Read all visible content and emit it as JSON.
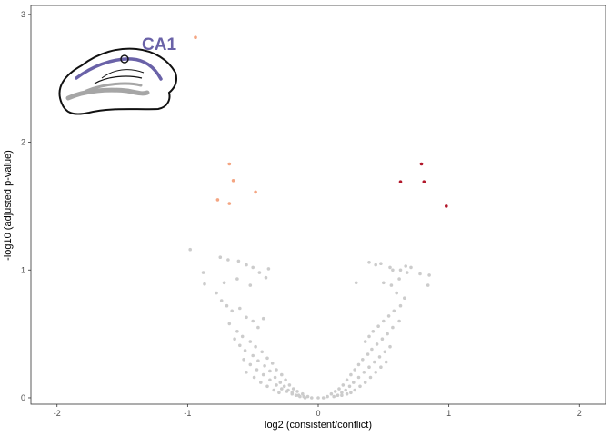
{
  "chart_data": {
    "type": "scatter",
    "title": "",
    "xlabel": "log2 (consistent/conflict)",
    "ylabel": "-log10 (adjusted p-value)",
    "xlim": [
      -2.2,
      2.2
    ],
    "ylim": [
      -0.05,
      3.07
    ],
    "x_ticks": [
      -2,
      -1,
      0,
      1,
      2
    ],
    "y_ticks": [
      0,
      1,
      2,
      3
    ],
    "grid": false,
    "legend": "none",
    "colors": {
      "background_points": "#cccccc",
      "up_points": "#b2182b",
      "down_points": "#f4a582",
      "inset_accent": "#6a62a8",
      "inset_outline": "#111111",
      "inset_layer": "#a6a6a6"
    },
    "inset": {
      "region_label": "CA1"
    },
    "series": [
      {
        "name": "",
        "role": "significant-up",
        "points": [
          [
            0.79,
            1.83
          ],
          [
            0.63,
            1.69
          ],
          [
            0.81,
            1.69
          ],
          [
            0.98,
            1.5
          ]
        ]
      },
      {
        "name": "",
        "role": "significant-down",
        "points": [
          [
            -0.94,
            2.82
          ],
          [
            -0.68,
            1.83
          ],
          [
            -0.65,
            1.7
          ],
          [
            -0.48,
            1.61
          ],
          [
            -0.77,
            1.55
          ],
          [
            -0.68,
            1.52
          ]
        ]
      },
      {
        "name": "",
        "role": "not-significant",
        "points": [
          [
            -0.98,
            1.16
          ],
          [
            -0.88,
            0.98
          ],
          [
            -0.87,
            0.89
          ],
          [
            -0.75,
            1.1
          ],
          [
            -0.69,
            1.08
          ],
          [
            -0.61,
            1.07
          ],
          [
            -0.55,
            1.04
          ],
          [
            -0.5,
            1.02
          ],
          [
            -0.45,
            0.98
          ],
          [
            -0.38,
            1.01
          ],
          [
            -0.4,
            0.94
          ],
          [
            -0.62,
            0.93
          ],
          [
            -0.72,
            0.9
          ],
          [
            -0.52,
            0.88
          ],
          [
            -0.78,
            0.82
          ],
          [
            -0.74,
            0.76
          ],
          [
            -0.7,
            0.72
          ],
          [
            -0.66,
            0.68
          ],
          [
            -0.6,
            0.7
          ],
          [
            -0.55,
            0.63
          ],
          [
            -0.5,
            0.6
          ],
          [
            -0.46,
            0.55
          ],
          [
            -0.42,
            0.62
          ],
          [
            -0.68,
            0.58
          ],
          [
            -0.62,
            0.52
          ],
          [
            -0.58,
            0.48
          ],
          [
            -0.52,
            0.44
          ],
          [
            -0.48,
            0.4
          ],
          [
            -0.43,
            0.36
          ],
          [
            -0.39,
            0.31
          ],
          [
            -0.35,
            0.27
          ],
          [
            -0.32,
            0.22
          ],
          [
            -0.28,
            0.18
          ],
          [
            -0.25,
            0.14
          ],
          [
            -0.22,
            0.1
          ],
          [
            -0.19,
            0.07
          ],
          [
            -0.16,
            0.05
          ],
          [
            -0.12,
            0.03
          ],
          [
            -0.08,
            0.01
          ],
          [
            -0.64,
            0.46
          ],
          [
            -0.6,
            0.41
          ],
          [
            -0.56,
            0.37
          ],
          [
            -0.5,
            0.33
          ],
          [
            -0.46,
            0.29
          ],
          [
            -0.41,
            0.25
          ],
          [
            -0.37,
            0.21
          ],
          [
            -0.33,
            0.16
          ],
          [
            -0.29,
            0.12
          ],
          [
            -0.26,
            0.09
          ],
          [
            -0.23,
            0.06
          ],
          [
            -0.2,
            0.04
          ],
          [
            -0.17,
            0.02
          ],
          [
            -0.14,
            0.01
          ],
          [
            -0.1,
            0.0
          ],
          [
            -0.05,
            0.0
          ],
          [
            0.0,
            0.0
          ],
          [
            -0.57,
            0.3
          ],
          [
            -0.52,
            0.26
          ],
          [
            -0.47,
            0.22
          ],
          [
            -0.42,
            0.18
          ],
          [
            -0.37,
            0.14
          ],
          [
            -0.32,
            0.1
          ],
          [
            -0.28,
            0.07
          ],
          [
            -0.24,
            0.05
          ],
          [
            -0.2,
            0.03
          ],
          [
            -0.15,
            0.02
          ],
          [
            -0.11,
            0.01
          ],
          [
            -0.55,
            0.2
          ],
          [
            -0.49,
            0.16
          ],
          [
            -0.44,
            0.12
          ],
          [
            -0.39,
            0.09
          ],
          [
            -0.34,
            0.06
          ],
          [
            -0.3,
            0.04
          ],
          [
            0.29,
            0.9
          ],
          [
            0.39,
            1.06
          ],
          [
            0.44,
            1.04
          ],
          [
            0.48,
            1.05
          ],
          [
            0.55,
            1.02
          ],
          [
            0.57,
            1.0
          ],
          [
            0.63,
            1.0
          ],
          [
            0.67,
            1.03
          ],
          [
            0.71,
            1.02
          ],
          [
            0.68,
            0.98
          ],
          [
            0.62,
            0.93
          ],
          [
            0.78,
            0.97
          ],
          [
            0.85,
            0.96
          ],
          [
            0.84,
            0.88
          ],
          [
            0.56,
            0.88
          ],
          [
            0.5,
            0.9
          ],
          [
            0.6,
            0.82
          ],
          [
            0.66,
            0.78
          ],
          [
            0.63,
            0.72
          ],
          [
            0.58,
            0.68
          ],
          [
            0.54,
            0.64
          ],
          [
            0.5,
            0.6
          ],
          [
            0.46,
            0.56
          ],
          [
            0.42,
            0.52
          ],
          [
            0.39,
            0.48
          ],
          [
            0.36,
            0.44
          ],
          [
            0.62,
            0.6
          ],
          [
            0.57,
            0.55
          ],
          [
            0.53,
            0.5
          ],
          [
            0.49,
            0.46
          ],
          [
            0.45,
            0.42
          ],
          [
            0.41,
            0.38
          ],
          [
            0.38,
            0.34
          ],
          [
            0.34,
            0.3
          ],
          [
            0.31,
            0.26
          ],
          [
            0.28,
            0.22
          ],
          [
            0.25,
            0.18
          ],
          [
            0.22,
            0.14
          ],
          [
            0.19,
            0.1
          ],
          [
            0.16,
            0.07
          ],
          [
            0.13,
            0.05
          ],
          [
            0.1,
            0.03
          ],
          [
            0.07,
            0.01
          ],
          [
            0.04,
            0.0
          ],
          [
            0.55,
            0.4
          ],
          [
            0.51,
            0.36
          ],
          [
            0.47,
            0.32
          ],
          [
            0.43,
            0.28
          ],
          [
            0.39,
            0.24
          ],
          [
            0.35,
            0.2
          ],
          [
            0.31,
            0.16
          ],
          [
            0.27,
            0.12
          ],
          [
            0.24,
            0.09
          ],
          [
            0.21,
            0.06
          ],
          [
            0.18,
            0.04
          ],
          [
            0.15,
            0.02
          ],
          [
            0.12,
            0.01
          ],
          [
            0.52,
            0.28
          ],
          [
            0.48,
            0.24
          ],
          [
            0.44,
            0.2
          ],
          [
            0.4,
            0.16
          ],
          [
            0.36,
            0.12
          ],
          [
            0.32,
            0.09
          ],
          [
            0.28,
            0.06
          ],
          [
            0.25,
            0.04
          ],
          [
            0.22,
            0.03
          ],
          [
            0.18,
            0.02
          ]
        ]
      }
    ]
  }
}
